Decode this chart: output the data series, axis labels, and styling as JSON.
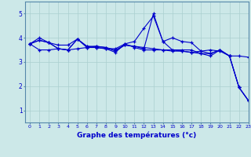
{
  "title": "",
  "xlabel": "Graphe des températures (°c)",
  "ylabel": "",
  "xlim": [
    -0.5,
    23
  ],
  "ylim": [
    0.5,
    5.5
  ],
  "yticks": [
    1,
    2,
    3,
    4,
    5
  ],
  "xticks": [
    0,
    1,
    2,
    3,
    4,
    5,
    6,
    7,
    8,
    9,
    10,
    11,
    12,
    13,
    14,
    15,
    16,
    17,
    18,
    19,
    20,
    21,
    22,
    23
  ],
  "background_color": "#cce8e8",
  "line_color": "#0000cc",
  "grid_color": "#aacfcf",
  "series": [
    [
      3.75,
      4.0,
      3.8,
      3.7,
      3.7,
      3.95,
      3.65,
      3.6,
      3.55,
      3.55,
      3.75,
      3.6,
      3.5,
      3.5,
      3.5,
      3.5,
      3.45,
      3.4,
      3.45,
      3.5,
      3.45,
      3.25,
      3.25,
      3.2
    ],
    [
      3.75,
      3.9,
      3.8,
      3.55,
      3.5,
      3.95,
      3.6,
      3.6,
      3.55,
      3.4,
      3.75,
      3.85,
      4.4,
      4.9,
      3.85,
      4.0,
      3.85,
      3.8,
      3.45,
      3.35,
      3.5,
      3.25,
      1.95,
      1.4
    ],
    [
      3.75,
      3.9,
      3.8,
      3.55,
      3.5,
      3.95,
      3.65,
      3.65,
      3.6,
      3.45,
      3.7,
      3.65,
      3.55,
      5.0,
      3.85,
      3.5,
      3.5,
      3.5,
      3.35,
      3.25,
      3.5,
      3.25,
      1.95,
      1.4
    ],
    [
      3.75,
      3.5,
      3.5,
      3.55,
      3.5,
      3.55,
      3.6,
      3.65,
      3.6,
      3.5,
      3.7,
      3.65,
      3.6,
      3.55,
      3.5,
      3.45,
      3.45,
      3.4,
      3.35,
      3.35,
      3.5,
      3.25,
      1.95,
      1.4
    ]
  ]
}
